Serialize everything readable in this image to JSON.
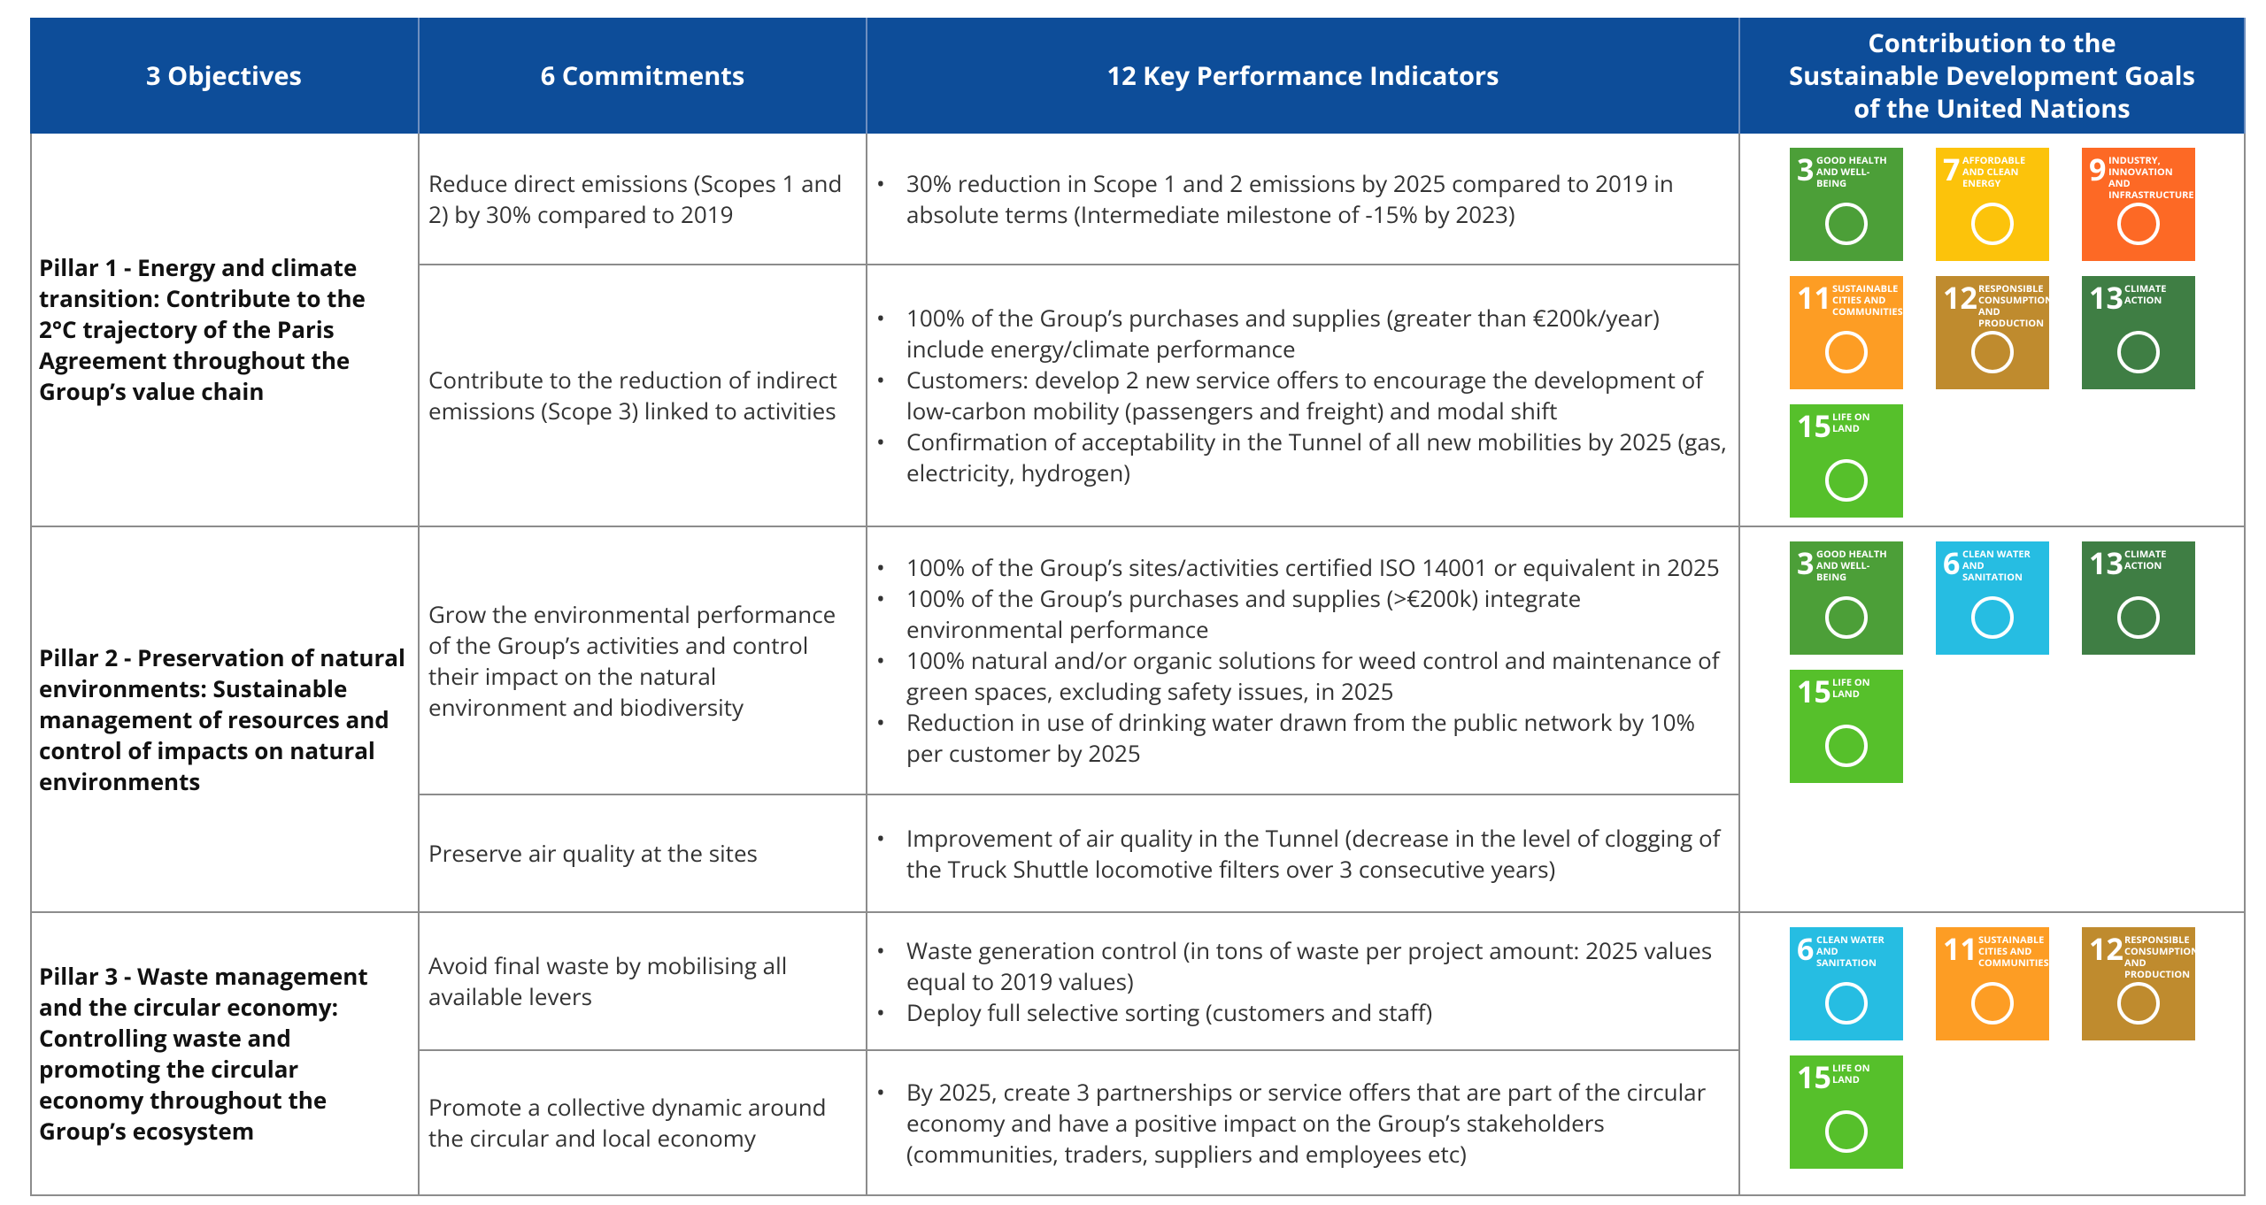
{
  "header": {
    "columns": [
      [
        "3 Objectives"
      ],
      [
        "6 Commitments"
      ],
      [
        "12 Key Performance Indicators"
      ],
      [
        "Contribution to the",
        "Sustainable Development Goals",
        "of the United Nations"
      ]
    ]
  },
  "pillars": [
    {
      "objective": "Pillar 1 - Energy and climate transition: Contribute to the 2°C trajectory of the Paris Agreement throughout the Group’s value chain",
      "commitments": [
        {
          "text": "Reduce direct emissions (Scopes 1 and 2) by 30% compared to 2019",
          "kpis": [
            "30% reduction in Scope 1 and 2 emissions by 2025 compared to 2019 in absolute terms (Intermediate milestone of -15% by 2023)"
          ]
        },
        {
          "text": "Contribute to the reduction of indirect emissions (Scope 3) linked to activities",
          "kpis": [
            "100% of the Group’s purchases and supplies (greater than €200k/year) include energy/climate performance",
            "Customers: develop 2 new service offers to encourage the development of low-carbon mobility (passengers and freight) and modal shift",
            "Confirmation of acceptability in the Tunnel of all new mobilities by 2025 (gas, electricity, hydrogen)"
          ]
        }
      ],
      "sdgs": [
        {
          "number": "3",
          "label": "Good health and well-being",
          "color": "#4c9f38"
        },
        {
          "number": "7",
          "label": "Affordable and clean energy",
          "color": "#fcc30b"
        },
        {
          "number": "9",
          "label": "Industry, innovation and infrastructure",
          "color": "#fd6925"
        },
        {
          "number": "11",
          "label": "Sustainable cities and communities",
          "color": "#fd9d24"
        },
        {
          "number": "12",
          "label": "Responsible consumption and production",
          "color": "#bf8b2e"
        },
        {
          "number": "13",
          "label": "Climate action",
          "color": "#3f7e44"
        },
        {
          "number": "15",
          "label": "Life on land",
          "color": "#56c02b"
        }
      ]
    },
    {
      "objective": "Pillar 2 - Preservation of natural environments: Sustainable management of resources and control of impacts on natural environments",
      "commitments": [
        {
          "text": "Grow the environmental performance of the Group’s activities and control their impact on the natural environment and biodiversity",
          "kpis": [
            "100% of the Group’s sites/activities certified ISO 14001 or equivalent in 2025",
            "100% of the Group’s purchases and supplies (>€200k) integrate environmental performance",
            "100% natural and/or organic solutions for weed control and maintenance of green spaces, excluding safety issues, in 2025",
            "Reduction in use of drinking water drawn from the public network by 10% per customer by 2025"
          ]
        },
        {
          "text": "Preserve air quality at the sites",
          "kpis": [
            "Improvement of air quality in the Tunnel (decrease in the level of clogging of the Truck Shuttle locomotive filters over 3 consecutive years)"
          ]
        }
      ],
      "sdgs": [
        {
          "number": "3",
          "label": "Good health and well-being",
          "color": "#4c9f38"
        },
        {
          "number": "6",
          "label": "Clean water and sanitation",
          "color": "#26bde2"
        },
        {
          "number": "13",
          "label": "Climate action",
          "color": "#3f7e44"
        },
        {
          "number": "15",
          "label": "Life on land",
          "color": "#56c02b"
        }
      ]
    },
    {
      "objective": "Pillar 3 - Waste management and the circular economy: Controlling waste and promoting the circular economy throughout the Group’s ecosystem",
      "commitments": [
        {
          "text": "Avoid final waste by mobilising all available levers",
          "kpis": [
            "Waste generation control (in tons of waste per project amount: 2025 values equal to 2019 values)",
            "Deploy full selective sorting (customers and staff)"
          ]
        },
        {
          "text": "Promote a collective dynamic around the circular and local economy",
          "kpis": [
            "By 2025, create 3 partnerships or service offers that are part of the circular economy and have a positive impact on the Group’s stakeholders (communities, traders, suppliers and employees etc)"
          ]
        }
      ],
      "sdgs": [
        {
          "number": "6",
          "label": "Clean water and sanitation",
          "color": "#26bde2"
        },
        {
          "number": "11",
          "label": "Sustainable cities and communities",
          "color": "#fd9d24"
        },
        {
          "number": "12",
          "label": "Responsible consumption and production",
          "color": "#bf8b2e"
        },
        {
          "number": "15",
          "label": "Life on land",
          "color": "#56c02b"
        }
      ]
    }
  ]
}
